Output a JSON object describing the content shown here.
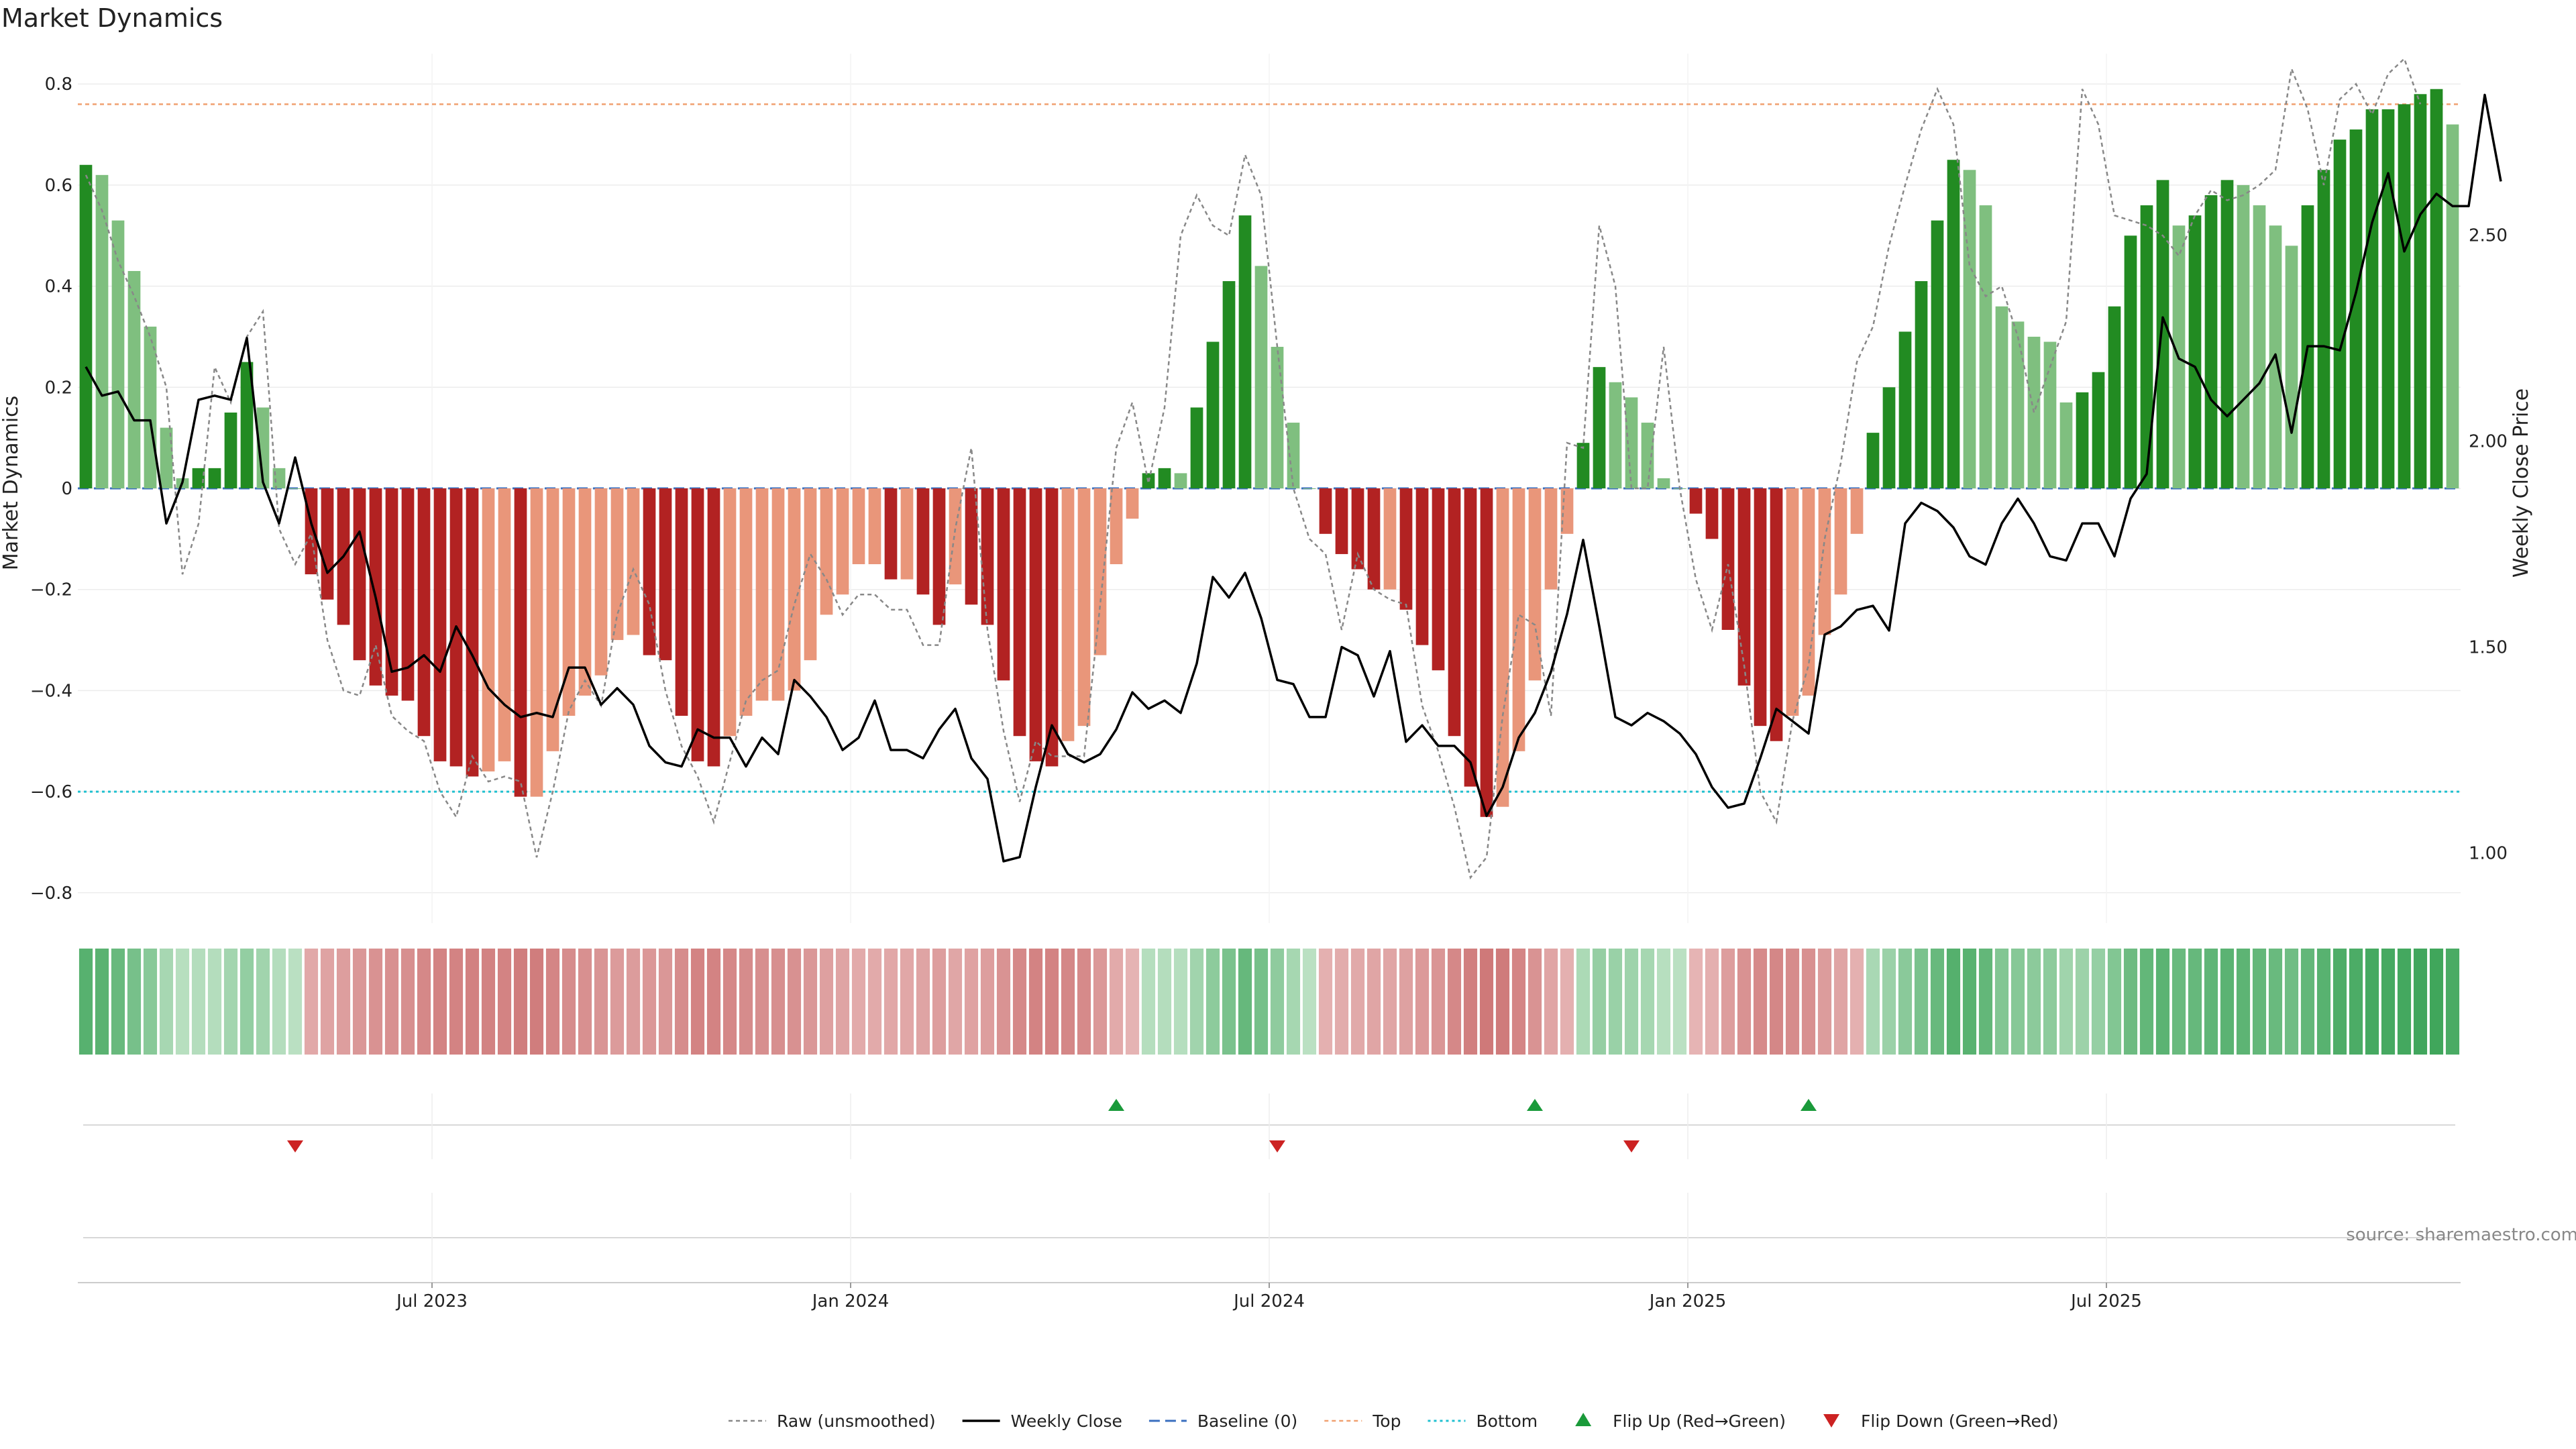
{
  "title": "Market Dynamics",
  "source": "source: sharemaestro.com",
  "colors": {
    "strong_green": "#228b22",
    "light_green": "#7fbf7f",
    "strong_red": "#b22222",
    "light_red": "#e9967a",
    "close_line": "#000000",
    "raw_line": "#888888",
    "baseline": "#3a6fbf",
    "top": "#f0a070",
    "bottom": "#20c0d0",
    "flip_up": "#1a9a3a",
    "flip_down": "#cc2222"
  },
  "chart_data": {
    "type": "bar",
    "title": "Market Dynamics",
    "ylabel": "Market Dynamics",
    "y2label": "Weekly Close Price",
    "ylim": [
      -0.86,
      0.86
    ],
    "y2lim": [
      0.83,
      2.94
    ],
    "yticks": [
      -0.8,
      -0.6,
      -0.4,
      -0.2,
      0,
      0.2,
      0.4,
      0.6,
      0.8
    ],
    "yticklabels": [
      "−0.8",
      "−0.6",
      "−0.4",
      "−0.2",
      "0",
      "0.2",
      "0.4",
      "0.6",
      "0.8"
    ],
    "y2ticks": [
      1.0,
      1.5,
      2.0,
      2.5
    ],
    "y2ticklabels": [
      "1.00",
      "1.50",
      "2.00",
      "2.50"
    ],
    "xticklabels": [
      "Jul 2023",
      "Jan 2024",
      "Jul 2024",
      "Jan 2025",
      "Jul 2025"
    ],
    "xtick_index": [
      22,
      48,
      74,
      100,
      126
    ],
    "top_level": 0.76,
    "bottom_level": -0.6,
    "grid": true,
    "legend_position": "bottom-center",
    "series": [
      {
        "name": "Market Dynamics",
        "values": [
          0.64,
          0.62,
          0.53,
          0.43,
          0.32,
          0.12,
          0.02,
          0.04,
          0.04,
          0.15,
          0.25,
          0.16,
          0.04,
          0.0,
          -0.17,
          -0.22,
          -0.27,
          -0.34,
          -0.39,
          -0.41,
          -0.42,
          -0.49,
          -0.54,
          -0.55,
          -0.57,
          -0.56,
          -0.54,
          -0.61,
          -0.61,
          -0.52,
          -0.45,
          -0.41,
          -0.37,
          -0.3,
          -0.29,
          -0.33,
          -0.34,
          -0.45,
          -0.54,
          -0.55,
          -0.49,
          -0.45,
          -0.42,
          -0.42,
          -0.4,
          -0.34,
          -0.25,
          -0.21,
          -0.15,
          -0.15,
          -0.18,
          -0.18,
          -0.21,
          -0.27,
          -0.19,
          -0.23,
          -0.27,
          -0.38,
          -0.49,
          -0.54,
          -0.55,
          -0.5,
          -0.47,
          -0.33,
          -0.15,
          -0.06,
          0.03,
          0.04,
          0.03,
          0.16,
          0.29,
          0.41,
          0.54,
          0.44,
          0.28,
          0.13,
          0.0,
          -0.09,
          -0.13,
          -0.16,
          -0.2,
          -0.2,
          -0.24,
          -0.31,
          -0.36,
          -0.49,
          -0.59,
          -0.65,
          -0.63,
          -0.52,
          -0.38,
          -0.2,
          -0.09,
          0.09,
          0.24,
          0.21,
          0.18,
          0.13,
          0.02,
          0.0,
          -0.05,
          -0.1,
          -0.28,
          -0.39,
          -0.47,
          -0.5,
          -0.45,
          -0.41,
          -0.29,
          -0.21,
          -0.09,
          0.11,
          0.2,
          0.31,
          0.41,
          0.53,
          0.65,
          0.63,
          0.56,
          0.36,
          0.33,
          0.3,
          0.29,
          0.17,
          0.19,
          0.23,
          0.36,
          0.5,
          0.56,
          0.61,
          0.52,
          0.54,
          0.58,
          0.61,
          0.6,
          0.56,
          0.52,
          0.48,
          0.56,
          0.63,
          0.69,
          0.71,
          0.75,
          0.75,
          0.76,
          0.78,
          0.79,
          0.72
        ]
      },
      {
        "name": "Weekly Close",
        "values": [
          2.18,
          2.11,
          2.12,
          2.05,
          2.05,
          1.8,
          1.9,
          2.1,
          2.11,
          2.1,
          2.25,
          1.9,
          1.8,
          1.96,
          1.8,
          1.68,
          1.72,
          1.78,
          1.62,
          1.44,
          1.45,
          1.48,
          1.44,
          1.55,
          1.48,
          1.4,
          1.36,
          1.33,
          1.34,
          1.33,
          1.45,
          1.45,
          1.36,
          1.4,
          1.36,
          1.26,
          1.22,
          1.21,
          1.3,
          1.28,
          1.28,
          1.21,
          1.28,
          1.24,
          1.42,
          1.38,
          1.33,
          1.25,
          1.28,
          1.37,
          1.25,
          1.25,
          1.23,
          1.3,
          1.35,
          1.23,
          1.18,
          0.98,
          0.99,
          1.16,
          1.31,
          1.24,
          1.22,
          1.24,
          1.3,
          1.39,
          1.35,
          1.37,
          1.34,
          1.46,
          1.67,
          1.62,
          1.68,
          1.57,
          1.42,
          1.41,
          1.33,
          1.33,
          1.5,
          1.48,
          1.38,
          1.49,
          1.27,
          1.31,
          1.26,
          1.26,
          1.22,
          1.09,
          1.16,
          1.28,
          1.34,
          1.44,
          1.58,
          1.76,
          1.55,
          1.33,
          1.31,
          1.34,
          1.32,
          1.29,
          1.24,
          1.16,
          1.11,
          1.12,
          1.23,
          1.35,
          1.32,
          1.29,
          1.53,
          1.55,
          1.59,
          1.6,
          1.54,
          1.8,
          1.85,
          1.83,
          1.79,
          1.72,
          1.7,
          1.8,
          1.86,
          1.8,
          1.72,
          1.71,
          1.8,
          1.8,
          1.72,
          1.86,
          1.92,
          2.3,
          2.2,
          2.18,
          2.1,
          2.06,
          2.1,
          2.14,
          2.21,
          2.02,
          2.23,
          2.23,
          2.22,
          2.36,
          2.53,
          2.65,
          2.46,
          2.55,
          2.6,
          2.57,
          2.57,
          2.84,
          2.63
        ]
      },
      {
        "name": "Raw (unsmoothed)",
        "values": [
          0.62,
          0.55,
          0.45,
          0.38,
          0.3,
          0.2,
          -0.17,
          -0.07,
          0.24,
          0.17,
          0.3,
          0.35,
          -0.08,
          -0.15,
          -0.09,
          -0.3,
          -0.4,
          -0.41,
          -0.31,
          -0.45,
          -0.48,
          -0.5,
          -0.6,
          -0.65,
          -0.53,
          -0.58,
          -0.57,
          -0.58,
          -0.73,
          -0.6,
          -0.44,
          -0.38,
          -0.43,
          -0.25,
          -0.16,
          -0.23,
          -0.4,
          -0.51,
          -0.57,
          -0.66,
          -0.54,
          -0.42,
          -0.38,
          -0.36,
          -0.23,
          -0.13,
          -0.18,
          -0.25,
          -0.21,
          -0.21,
          -0.24,
          -0.24,
          -0.31,
          -0.31,
          -0.08,
          0.08,
          -0.28,
          -0.48,
          -0.62,
          -0.5,
          -0.53,
          -0.53,
          -0.53,
          -0.23,
          0.08,
          0.17,
          0.01,
          0.16,
          0.5,
          0.58,
          0.52,
          0.5,
          0.66,
          0.58,
          0.28,
          0.0,
          -0.1,
          -0.13,
          -0.28,
          -0.13,
          -0.2,
          -0.22,
          -0.23,
          -0.43,
          -0.52,
          -0.63,
          -0.77,
          -0.73,
          -0.45,
          -0.25,
          -0.27,
          -0.45,
          0.09,
          0.08,
          0.52,
          0.4,
          0.0,
          0.0,
          0.28,
          0.0,
          -0.18,
          -0.28,
          -0.15,
          -0.35,
          -0.6,
          -0.66,
          -0.46,
          -0.35,
          -0.1,
          0.05,
          0.25,
          0.32,
          0.48,
          0.6,
          0.71,
          0.79,
          0.72,
          0.44,
          0.38,
          0.4,
          0.3,
          0.15,
          0.24,
          0.33,
          0.79,
          0.72,
          0.54,
          0.53,
          0.52,
          0.5,
          0.46,
          0.54,
          0.59,
          0.57,
          0.58,
          0.6,
          0.63,
          0.83,
          0.75,
          0.6,
          0.77,
          0.8,
          0.74,
          0.82,
          0.85,
          0.76
        ]
      }
    ],
    "heatstrip": {
      "type": "heatmap",
      "values_source": "Market Dynamics"
    },
    "flips": [
      {
        "type": "Flip Down (Green→Red)",
        "index": 13
      },
      {
        "type": "Flip Up (Red→Green)",
        "index": 64
      },
      {
        "type": "Flip Down (Green→Red)",
        "index": 74
      },
      {
        "type": "Flip Up (Red→Green)",
        "index": 90
      },
      {
        "type": "Flip Down (Green→Red)",
        "index": 96
      },
      {
        "type": "Flip Up (Red→Green)",
        "index": 107
      }
    ]
  },
  "legend": [
    {
      "label": "Raw (unsmoothed)",
      "style": "raw"
    },
    {
      "label": "Weekly Close",
      "style": "close"
    },
    {
      "label": "Baseline (0)",
      "style": "baseline"
    },
    {
      "label": "Top",
      "style": "top"
    },
    {
      "label": "Bottom",
      "style": "bottom"
    },
    {
      "label": "Flip Up (Red→Green)",
      "style": "flipup"
    },
    {
      "label": "Flip Down (Green→Red)",
      "style": "flipdown"
    }
  ]
}
